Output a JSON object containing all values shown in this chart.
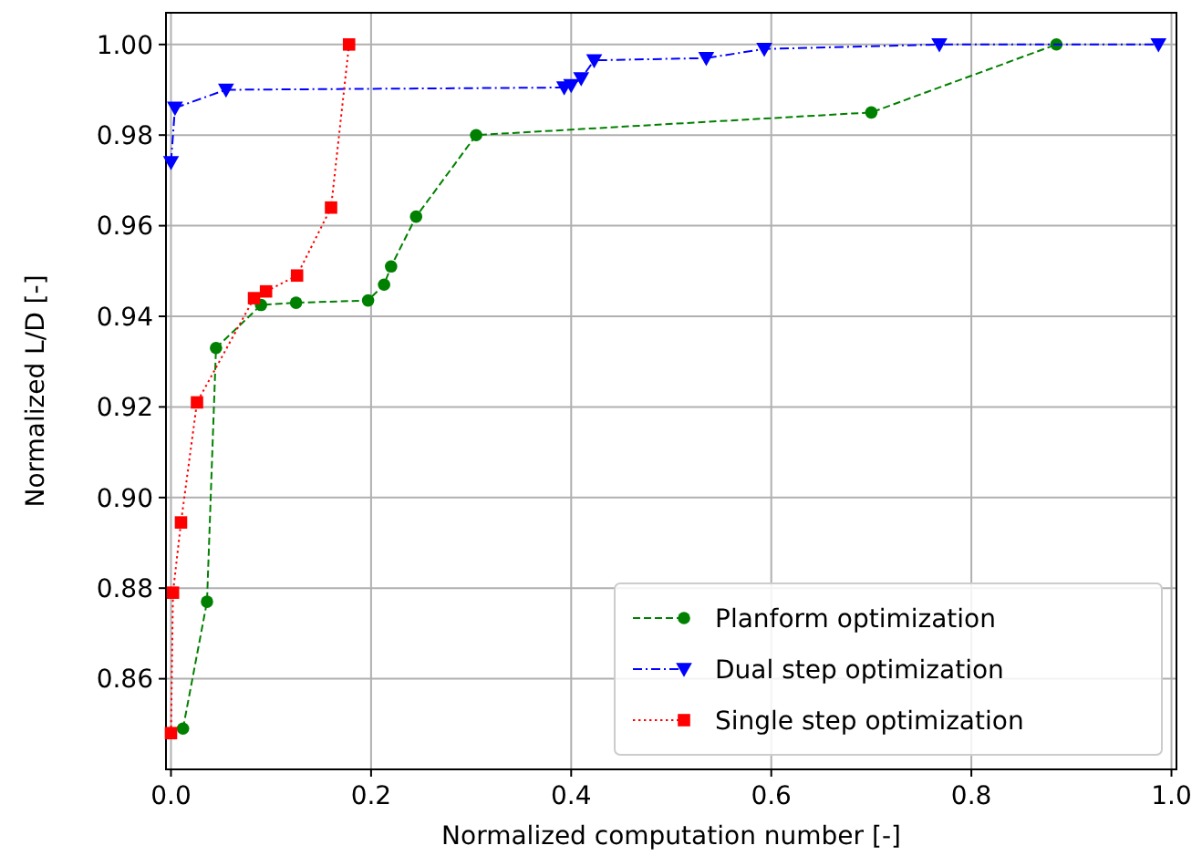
{
  "chart_data": {
    "type": "line",
    "xlabel": "Normalized computation number [-]",
    "ylabel": "Normalized L/D [-]",
    "xlim": [
      -0.005,
      1.005
    ],
    "ylim": [
      0.84,
      1.007
    ],
    "xticks": [
      {
        "value": 0,
        "label": "0.0"
      },
      0.2,
      0.4,
      0.6,
      0.8,
      {
        "value": 1,
        "label": "1.0"
      }
    ],
    "yticks": [
      0.86,
      0.88,
      {
        "value": 0.9,
        "label": "0.90"
      },
      0.92,
      0.94,
      0.96,
      0.98,
      {
        "value": 1,
        "label": "1.00"
      }
    ],
    "grid": true,
    "legend": "bottom right",
    "series": [
      {
        "name": "Planform optimization",
        "color": "#008000",
        "marker": "circle",
        "line_style": "dashed",
        "x": [
          0.012,
          0.036,
          0.045,
          0.09,
          0.125,
          0.197,
          0.213,
          0.22,
          0.245,
          0.305,
          0.7,
          0.885
        ],
        "values": [
          0.849,
          0.877,
          0.933,
          0.9425,
          0.943,
          0.9435,
          0.947,
          0.951,
          0.962,
          0.98,
          0.985,
          1.0
        ]
      },
      {
        "name": "Dual step optimization",
        "color": "#0000ff",
        "marker": "triangle",
        "line_style": "dashdot",
        "x": [
          0.0,
          0.004,
          0.055,
          0.393,
          0.4,
          0.41,
          0.423,
          0.535,
          0.593,
          0.768,
          0.987
        ],
        "values": [
          0.974,
          0.986,
          0.99,
          0.9905,
          0.991,
          0.9925,
          0.9965,
          0.997,
          0.999,
          1.0,
          1.0
        ]
      },
      {
        "name": "Single step optimization",
        "color": "#ff0000",
        "marker": "square",
        "line_style": "dotted",
        "x": [
          0.0,
          0.002,
          0.01,
          0.026,
          0.083,
          0.095,
          0.126,
          0.16,
          0.178
        ],
        "values": [
          0.848,
          0.879,
          0.8945,
          0.921,
          0.944,
          0.9455,
          0.949,
          0.964,
          1.0
        ]
      }
    ]
  }
}
